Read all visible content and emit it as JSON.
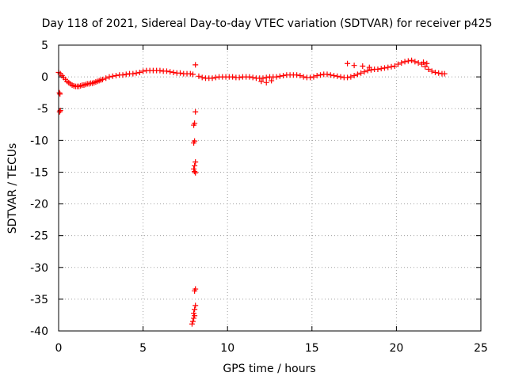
{
  "chart_data": {
    "type": "scatter",
    "title": "Day 118 of 2021, Sidereal Day-to-day VTEC variation (SDTVAR) for receiver p425",
    "xlabel": "GPS time / hours",
    "ylabel": "SDTVAR / TECUs",
    "xlim": [
      0,
      25
    ],
    "ylim": [
      -40,
      5
    ],
    "xticks": [
      0,
      5,
      10,
      15,
      20,
      25
    ],
    "xtick_labels": [
      "0",
      "5",
      "10",
      "15",
      "20",
      "25"
    ],
    "yticks": [
      5,
      0,
      -5,
      -10,
      -15,
      -20,
      -25,
      -30,
      -35,
      -40
    ],
    "ytick_labels": [
      "5",
      "0",
      "-5",
      "-10",
      "-15",
      "-20",
      "-25",
      "-30",
      "-35",
      "-40"
    ],
    "grid": true,
    "marker": "+",
    "series": [
      {
        "name": "SDTVAR",
        "color": "#ff0000",
        "points": [
          [
            0.0,
            0.7
          ],
          [
            0.1,
            0.5
          ],
          [
            0.2,
            0.2
          ],
          [
            0.3,
            -0.1
          ],
          [
            0.4,
            -0.4
          ],
          [
            0.5,
            -0.7
          ],
          [
            0.6,
            -0.9
          ],
          [
            0.7,
            -1.1
          ],
          [
            0.8,
            -1.3
          ],
          [
            0.9,
            -1.4
          ],
          [
            1.0,
            -1.5
          ],
          [
            1.1,
            -1.5
          ],
          [
            1.2,
            -1.5
          ],
          [
            1.3,
            -1.4
          ],
          [
            1.4,
            -1.3
          ],
          [
            1.5,
            -1.3
          ],
          [
            1.6,
            -1.2
          ],
          [
            1.7,
            -1.1
          ],
          [
            1.8,
            -1.1
          ],
          [
            1.9,
            -1.0
          ],
          [
            2.0,
            -1.0
          ],
          [
            2.1,
            -0.9
          ],
          [
            2.2,
            -0.8
          ],
          [
            2.3,
            -0.7
          ],
          [
            2.4,
            -0.6
          ],
          [
            2.5,
            -0.5
          ],
          [
            2.6,
            -0.4
          ],
          [
            2.8,
            -0.2
          ],
          [
            3.0,
            0.0
          ],
          [
            3.2,
            0.1
          ],
          [
            3.4,
            0.2
          ],
          [
            3.6,
            0.3
          ],
          [
            3.8,
            0.3
          ],
          [
            4.0,
            0.4
          ],
          [
            4.2,
            0.5
          ],
          [
            4.4,
            0.5
          ],
          [
            4.6,
            0.6
          ],
          [
            4.8,
            0.7
          ],
          [
            5.0,
            0.9
          ],
          [
            5.2,
            1.0
          ],
          [
            5.4,
            1.0
          ],
          [
            5.6,
            1.0
          ],
          [
            5.8,
            1.0
          ],
          [
            6.0,
            1.0
          ],
          [
            6.2,
            0.9
          ],
          [
            6.4,
            0.9
          ],
          [
            6.6,
            0.8
          ],
          [
            6.8,
            0.7
          ],
          [
            7.0,
            0.6
          ],
          [
            7.2,
            0.6
          ],
          [
            7.4,
            0.5
          ],
          [
            7.6,
            0.5
          ],
          [
            7.8,
            0.5
          ],
          [
            7.95,
            0.4
          ],
          [
            0.05,
            -2.5
          ],
          [
            0.08,
            -2.7
          ],
          [
            0.06,
            -5.5
          ],
          [
            0.1,
            -5.3
          ],
          [
            8.1,
            1.9
          ],
          [
            8.1,
            -5.5
          ],
          [
            8.05,
            -7.3
          ],
          [
            8.0,
            -7.6
          ],
          [
            8.05,
            -10.1
          ],
          [
            8.0,
            -10.4
          ],
          [
            8.1,
            -13.4
          ],
          [
            8.05,
            -14.0
          ],
          [
            8.0,
            -14.5
          ],
          [
            8.05,
            -14.9
          ],
          [
            8.1,
            -15.1
          ],
          [
            8.1,
            -33.4
          ],
          [
            8.05,
            -33.7
          ],
          [
            8.1,
            -36.0
          ],
          [
            8.05,
            -36.6
          ],
          [
            8.0,
            -37.2
          ],
          [
            8.05,
            -37.6
          ],
          [
            8.0,
            -38.0
          ],
          [
            7.95,
            -38.5
          ],
          [
            7.9,
            -38.9
          ],
          [
            8.3,
            0.1
          ],
          [
            8.5,
            -0.1
          ],
          [
            8.7,
            -0.2
          ],
          [
            8.9,
            -0.2
          ],
          [
            9.1,
            -0.2
          ],
          [
            9.3,
            -0.1
          ],
          [
            9.5,
            0.0
          ],
          [
            9.7,
            0.0
          ],
          [
            9.9,
            0.0
          ],
          [
            10.1,
            0.0
          ],
          [
            10.3,
            0.0
          ],
          [
            10.5,
            -0.1
          ],
          [
            10.7,
            -0.1
          ],
          [
            10.9,
            0.0
          ],
          [
            11.1,
            0.0
          ],
          [
            11.3,
            0.0
          ],
          [
            11.5,
            -0.1
          ],
          [
            11.7,
            -0.2
          ],
          [
            11.9,
            -0.2
          ],
          [
            12.1,
            -0.2
          ],
          [
            12.3,
            -0.1
          ],
          [
            12.5,
            0.0
          ],
          [
            12.7,
            0.0
          ],
          [
            12.9,
            0.0
          ],
          [
            13.1,
            0.1
          ],
          [
            13.3,
            0.2
          ],
          [
            13.5,
            0.3
          ],
          [
            13.7,
            0.3
          ],
          [
            13.9,
            0.3
          ],
          [
            14.1,
            0.3
          ],
          [
            14.3,
            0.2
          ],
          [
            14.5,
            0.0
          ],
          [
            14.7,
            -0.1
          ],
          [
            14.9,
            -0.1
          ],
          [
            15.1,
            0.0
          ],
          [
            15.3,
            0.2
          ],
          [
            15.5,
            0.3
          ],
          [
            15.7,
            0.4
          ],
          [
            15.9,
            0.4
          ],
          [
            16.1,
            0.3
          ],
          [
            16.3,
            0.2
          ],
          [
            16.5,
            0.1
          ],
          [
            16.7,
            0.0
          ],
          [
            16.9,
            -0.1
          ],
          [
            17.1,
            -0.1
          ],
          [
            17.3,
            0.0
          ],
          [
            17.5,
            0.2
          ],
          [
            17.7,
            0.4
          ],
          [
            17.9,
            0.6
          ],
          [
            18.1,
            0.8
          ],
          [
            18.3,
            1.0
          ],
          [
            18.5,
            1.1
          ],
          [
            18.7,
            1.2
          ],
          [
            18.9,
            1.2
          ],
          [
            19.1,
            1.3
          ],
          [
            19.3,
            1.4
          ],
          [
            19.5,
            1.5
          ],
          [
            19.7,
            1.6
          ],
          [
            19.9,
            1.7
          ],
          [
            20.1,
            2.0
          ],
          [
            20.3,
            2.2
          ],
          [
            20.5,
            2.4
          ],
          [
            20.7,
            2.5
          ],
          [
            20.9,
            2.6
          ],
          [
            21.1,
            2.4
          ],
          [
            21.3,
            2.2
          ],
          [
            21.5,
            2.0
          ],
          [
            21.7,
            1.6
          ],
          [
            21.9,
            1.2
          ],
          [
            22.1,
            0.9
          ],
          [
            22.3,
            0.7
          ],
          [
            22.5,
            0.6
          ],
          [
            22.7,
            0.5
          ],
          [
            22.85,
            0.5
          ],
          [
            12.3,
            -0.9
          ],
          [
            12.6,
            -0.6
          ],
          [
            12.0,
            -0.7
          ],
          [
            17.1,
            2.1
          ],
          [
            17.5,
            1.8
          ],
          [
            18.0,
            1.7
          ],
          [
            18.4,
            1.5
          ],
          [
            21.6,
            2.3
          ],
          [
            21.8,
            2.1
          ]
        ]
      }
    ]
  }
}
